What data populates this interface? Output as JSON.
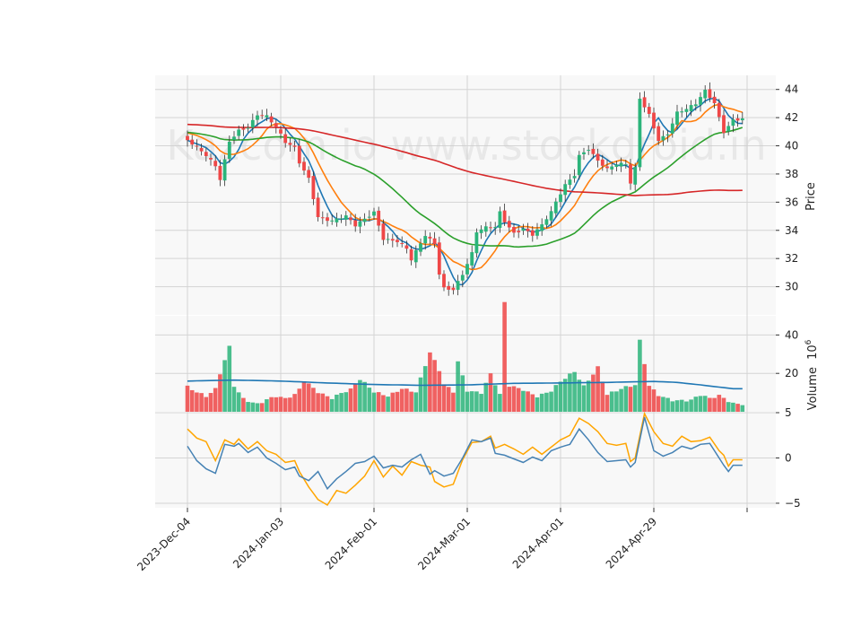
{
  "chart_data": {
    "type": "candlestick",
    "watermark": "Kazcom.io www.stockdroid.in",
    "panels": {
      "price": {
        "ylabel": "Price",
        "yticks": [
          30,
          32,
          34,
          36,
          38,
          40,
          42,
          44
        ],
        "ylim": [
          28.0,
          45.0
        ]
      },
      "volume": {
        "ylabel": "Volume",
        "ylabel_exponent": "6",
        "yticks": [
          20,
          40
        ],
        "ylim": [
          0,
          50
        ]
      },
      "oscillator": {
        "yticks": [
          -5,
          0,
          5
        ],
        "ylim": [
          -5.5,
          5.0
        ]
      }
    },
    "x_tick_labels": [
      {
        "index": 0,
        "label": "2023-Dec-04"
      },
      {
        "index": 20,
        "label": "2024-Jan-03"
      },
      {
        "index": 40,
        "label": "2024-Feb-01"
      },
      {
        "index": 60,
        "label": "2024-Mar-01"
      },
      {
        "index": 80,
        "label": "2024-Apr-01"
      },
      {
        "index": 100,
        "label": "2024-Apr-29"
      },
      {
        "index": 120,
        "label": ""
      }
    ],
    "num_bars": 120,
    "close_keypoints": [
      [
        0,
        40.4
      ],
      [
        2,
        39.8
      ],
      [
        4,
        39.2
      ],
      [
        6,
        38.5
      ],
      [
        7,
        37.6
      ],
      [
        9,
        40.4
      ],
      [
        11,
        41.2
      ],
      [
        13,
        41.4
      ],
      [
        15,
        42.2
      ],
      [
        17,
        42.0
      ],
      [
        19,
        41.2
      ],
      [
        21,
        40.2
      ],
      [
        23,
        39.9
      ],
      [
        24,
        38.9
      ],
      [
        26,
        37.8
      ],
      [
        28,
        35.0
      ],
      [
        31,
        34.6
      ],
      [
        34,
        34.9
      ],
      [
        36,
        34.3
      ],
      [
        40,
        35.4
      ],
      [
        42,
        33.5
      ],
      [
        45,
        33.2
      ],
      [
        47,
        32.6
      ],
      [
        48,
        31.8
      ],
      [
        51,
        33.6
      ],
      [
        53,
        33.1
      ],
      [
        54,
        31.0
      ],
      [
        55,
        30.0
      ],
      [
        57,
        29.9
      ],
      [
        59,
        30.9
      ],
      [
        61,
        32.3
      ],
      [
        62,
        33.8
      ],
      [
        64,
        34.1
      ],
      [
        66,
        34.2
      ],
      [
        67,
        35.3
      ],
      [
        68,
        34.7
      ],
      [
        70,
        33.9
      ],
      [
        72,
        34.2
      ],
      [
        74,
        33.7
      ],
      [
        76,
        34.3
      ],
      [
        78,
        35.2
      ],
      [
        79,
        35.9
      ],
      [
        81,
        37.2
      ],
      [
        83,
        38.0
      ],
      [
        84,
        39.4
      ],
      [
        86,
        39.9
      ],
      [
        88,
        39.0
      ],
      [
        90,
        38.3
      ],
      [
        92,
        38.6
      ],
      [
        94,
        38.6
      ],
      [
        95,
        37.3
      ],
      [
        96,
        38.4
      ],
      [
        97,
        43.4
      ],
      [
        99,
        42.3
      ],
      [
        101,
        40.5
      ],
      [
        103,
        40.9
      ],
      [
        105,
        42.3
      ],
      [
        107,
        42.5
      ],
      [
        109,
        42.9
      ],
      [
        111,
        43.9
      ],
      [
        113,
        43.1
      ],
      [
        115,
        41.1
      ],
      [
        117,
        41.9
      ]
    ],
    "volume_keypoints": [
      [
        0,
        14
      ],
      [
        2,
        11
      ],
      [
        4,
        8
      ],
      [
        6,
        11
      ],
      [
        7,
        19
      ],
      [
        9,
        33
      ],
      [
        10,
        13
      ],
      [
        12,
        7
      ],
      [
        15,
        5
      ],
      [
        17,
        7
      ],
      [
        19,
        8
      ],
      [
        21,
        6
      ],
      [
        23,
        8
      ],
      [
        24,
        11
      ],
      [
        25,
        16
      ],
      [
        28,
        11
      ],
      [
        31,
        8
      ],
      [
        33,
        10
      ],
      [
        35,
        11
      ],
      [
        37,
        16
      ],
      [
        40,
        10
      ],
      [
        43,
        9
      ],
      [
        46,
        13
      ],
      [
        49,
        10
      ],
      [
        52,
        30
      ],
      [
        54,
        21
      ],
      [
        55,
        14
      ],
      [
        57,
        11
      ],
      [
        58,
        27
      ],
      [
        60,
        12
      ],
      [
        63,
        10
      ],
      [
        65,
        19
      ],
      [
        67,
        8
      ],
      [
        68,
        56
      ],
      [
        69,
        13
      ],
      [
        72,
        12
      ],
      [
        75,
        9
      ],
      [
        78,
        11
      ],
      [
        80,
        15
      ],
      [
        83,
        20
      ],
      [
        85,
        13
      ],
      [
        88,
        24
      ],
      [
        90,
        10
      ],
      [
        93,
        12
      ],
      [
        96,
        13
      ],
      [
        97,
        36
      ],
      [
        99,
        13
      ],
      [
        101,
        9
      ],
      [
        104,
        7
      ],
      [
        108,
        6
      ],
      [
        110,
        8
      ],
      [
        112,
        6
      ],
      [
        114,
        8
      ],
      [
        117,
        5
      ]
    ],
    "volume_ma_keypoints": [
      [
        0,
        16.0
      ],
      [
        10,
        16.5
      ],
      [
        20,
        16.0
      ],
      [
        30,
        15.0
      ],
      [
        40,
        14.2
      ],
      [
        50,
        13.8
      ],
      [
        60,
        14.0
      ],
      [
        70,
        14.8
      ],
      [
        80,
        15.0
      ],
      [
        90,
        15.3
      ],
      [
        100,
        15.8
      ],
      [
        105,
        15.3
      ],
      [
        110,
        14.0
      ],
      [
        117,
        12.0
      ]
    ],
    "oscillator_keypoints": {
      "signal": [
        [
          0,
          3.2
        ],
        [
          2,
          2.2
        ],
        [
          4,
          1.8
        ],
        [
          6,
          -0.3
        ],
        [
          8,
          2.0
        ],
        [
          10,
          1.5
        ],
        [
          11,
          2.1
        ],
        [
          13,
          1.0
        ],
        [
          15,
          1.8
        ],
        [
          17,
          0.8
        ],
        [
          19,
          0.4
        ],
        [
          21,
          -0.5
        ],
        [
          23,
          -0.3
        ],
        [
          24,
          -1.5
        ],
        [
          26,
          -3.2
        ],
        [
          28,
          -4.6
        ],
        [
          30,
          -5.2
        ],
        [
          32,
          -3.6
        ],
        [
          34,
          -3.9
        ],
        [
          36,
          -3.0
        ],
        [
          38,
          -2.0
        ],
        [
          40,
          -0.3
        ],
        [
          42,
          -2.1
        ],
        [
          44,
          -0.9
        ],
        [
          46,
          -1.9
        ],
        [
          48,
          -0.4
        ],
        [
          50,
          -0.8
        ],
        [
          52,
          -1.0
        ],
        [
          53,
          -2.6
        ],
        [
          55,
          -3.2
        ],
        [
          57,
          -2.9
        ],
        [
          59,
          -0.2
        ],
        [
          61,
          1.7
        ],
        [
          63,
          1.8
        ],
        [
          65,
          2.4
        ],
        [
          66,
          1.1
        ],
        [
          68,
          1.5
        ],
        [
          70,
          1.0
        ],
        [
          72,
          0.4
        ],
        [
          74,
          1.2
        ],
        [
          76,
          0.4
        ],
        [
          78,
          1.2
        ],
        [
          80,
          2.0
        ],
        [
          82,
          2.5
        ],
        [
          84,
          4.4
        ],
        [
          86,
          3.8
        ],
        [
          88,
          2.9
        ],
        [
          90,
          1.6
        ],
        [
          92,
          1.4
        ],
        [
          94,
          1.6
        ],
        [
          95,
          -0.4
        ],
        [
          96,
          0.0
        ],
        [
          98,
          4.9
        ],
        [
          100,
          2.9
        ],
        [
          102,
          1.6
        ],
        [
          104,
          1.3
        ],
        [
          106,
          2.4
        ],
        [
          108,
          1.8
        ],
        [
          110,
          1.9
        ],
        [
          112,
          2.3
        ],
        [
          114,
          0.8
        ],
        [
          115,
          0.3
        ],
        [
          116,
          -0.9
        ],
        [
          117,
          -0.2
        ]
      ],
      "line": [
        [
          0,
          1.3
        ],
        [
          2,
          -0.3
        ],
        [
          4,
          -1.2
        ],
        [
          6,
          -1.7
        ],
        [
          8,
          1.5
        ],
        [
          10,
          1.3
        ],
        [
          11,
          1.6
        ],
        [
          13,
          0.6
        ],
        [
          15,
          1.2
        ],
        [
          17,
          0.0
        ],
        [
          19,
          -0.6
        ],
        [
          21,
          -1.3
        ],
        [
          23,
          -1.0
        ],
        [
          24,
          -2.0
        ],
        [
          26,
          -2.5
        ],
        [
          28,
          -1.5
        ],
        [
          30,
          -3.4
        ],
        [
          32,
          -2.3
        ],
        [
          34,
          -1.5
        ],
        [
          36,
          -0.6
        ],
        [
          38,
          -0.4
        ],
        [
          40,
          0.2
        ],
        [
          42,
          -1.1
        ],
        [
          44,
          -0.8
        ],
        [
          46,
          -1.0
        ],
        [
          48,
          -0.2
        ],
        [
          50,
          0.4
        ],
        [
          52,
          -1.8
        ],
        [
          53,
          -1.4
        ],
        [
          55,
          -2.0
        ],
        [
          57,
          -1.7
        ],
        [
          59,
          0.0
        ],
        [
          61,
          2.0
        ],
        [
          63,
          1.8
        ],
        [
          65,
          2.2
        ],
        [
          66,
          0.5
        ],
        [
          68,
          0.3
        ],
        [
          70,
          -0.1
        ],
        [
          72,
          -0.5
        ],
        [
          74,
          0.1
        ],
        [
          76,
          -0.3
        ],
        [
          78,
          0.8
        ],
        [
          80,
          1.2
        ],
        [
          82,
          1.5
        ],
        [
          84,
          3.2
        ],
        [
          86,
          2.0
        ],
        [
          88,
          0.6
        ],
        [
          90,
          -0.4
        ],
        [
          92,
          -0.3
        ],
        [
          94,
          -0.2
        ],
        [
          95,
          -1.0
        ],
        [
          96,
          -0.5
        ],
        [
          98,
          4.5
        ],
        [
          100,
          0.8
        ],
        [
          102,
          0.2
        ],
        [
          104,
          0.6
        ],
        [
          106,
          1.3
        ],
        [
          108,
          1.0
        ],
        [
          110,
          1.5
        ],
        [
          112,
          1.6
        ],
        [
          114,
          0.0
        ],
        [
          115,
          -0.8
        ],
        [
          116,
          -1.5
        ],
        [
          117,
          -0.8
        ]
      ]
    },
    "colors": {
      "up": "#2bb47a",
      "down": "#ef4747",
      "grid": "#d4d4d4",
      "panel_bg": "#f8f8f8",
      "ma_fast": "#1f77b4",
      "ma_mid": "#ff7f0e",
      "ma_slow": "#2ca02c",
      "ma_long": "#d62728",
      "vol_ma": "#1f77b4",
      "osc_line": "#4682b4",
      "osc_signal": "#ffa500"
    }
  }
}
